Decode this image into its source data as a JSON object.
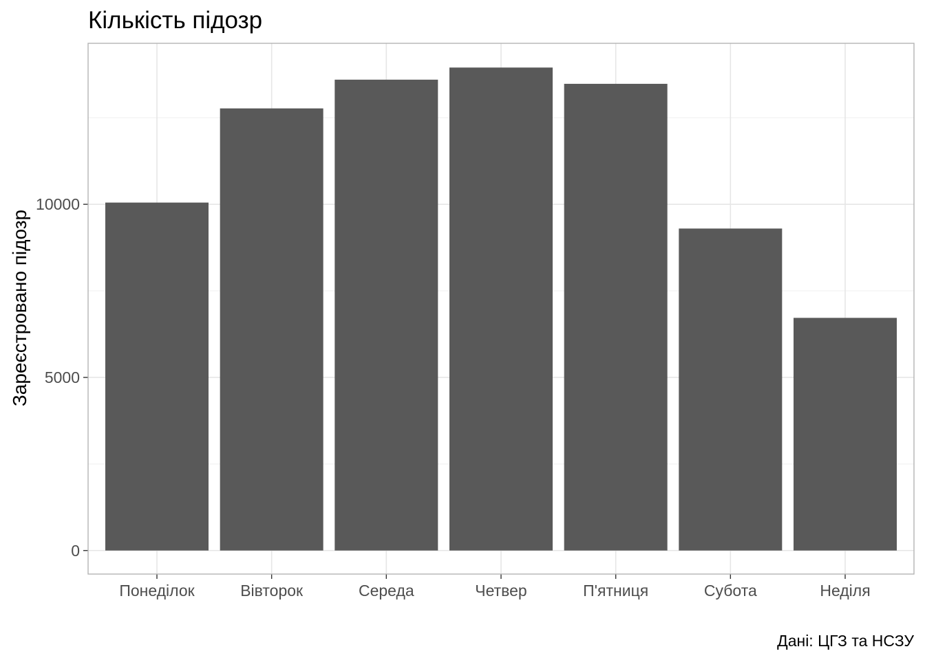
{
  "chart_data": {
    "type": "bar",
    "title": "Кількість підозр",
    "xlabel": "",
    "ylabel": "Зареєстровано підозр",
    "caption": "Дані: ЦГЗ та НСЗУ",
    "categories": [
      "Понеділок",
      "Вівторок",
      "Середа",
      "Четвер",
      "П'ятниця",
      "Субота",
      "Неділя"
    ],
    "values": [
      10050,
      12770,
      13600,
      13950,
      13480,
      9300,
      6720
    ],
    "ylim": [
      -680,
      14650
    ],
    "y_ticks": [
      0,
      5000,
      10000
    ],
    "y_tick_labels": [
      "0",
      "5000",
      "10000"
    ],
    "y_minor_ticks": [
      2500,
      7500,
      12500
    ],
    "grid": true,
    "theme": "light",
    "colors": {
      "bar": "#595959",
      "panel_border": "#b3b3b3",
      "grid_major": "#e6e6e6",
      "grid_minor": "#f2f2f2",
      "tick_text": "#4d4d4d",
      "text": "#000000"
    }
  }
}
